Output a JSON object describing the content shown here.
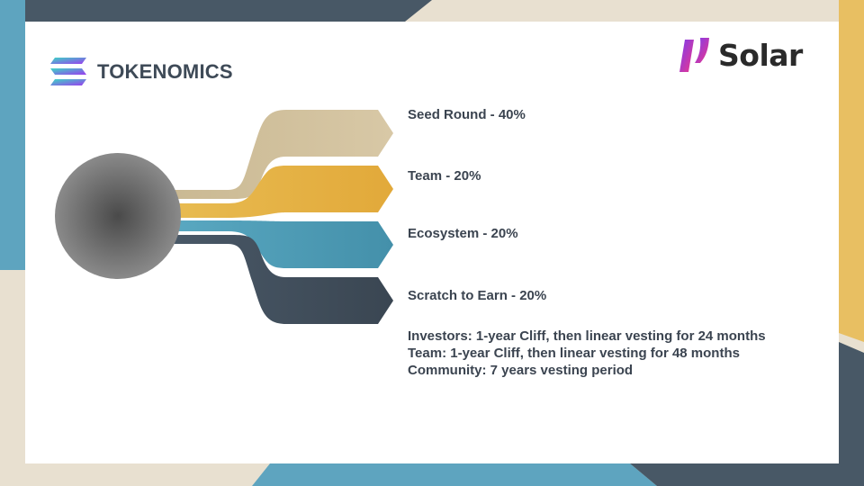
{
  "header": {
    "title": "TOKENOMICS",
    "title_icon": "solana-logo-icon",
    "brand_name": "Solar",
    "brand_icon": "solar-mark-icon"
  },
  "diagram": {
    "hub_icon": "hub-circle",
    "allocations": [
      {
        "label": "Seed Round - 40%",
        "name": "Seed Round",
        "percent": 40,
        "color": "#cdbd98"
      },
      {
        "label": "Team - 20%",
        "name": "Team",
        "percent": 20,
        "color": "#e5b03f"
      },
      {
        "label": "Ecosystem - 20%",
        "name": "Ecosystem",
        "percent": 20,
        "color": "#4b9bb5"
      },
      {
        "label": "Scratch to Earn - 20%",
        "name": "Scratch to Earn",
        "percent": 20,
        "color": "#3f4c5a"
      }
    ]
  },
  "vesting": [
    "Investors: 1-year Cliff, then linear vesting for 24 months",
    "Team: 1-year Cliff, then linear vesting for 48 months",
    "Community: 7 years vesting period"
  ],
  "colors": {
    "background_cream": "#e8e0d0",
    "background_navy": "#485866",
    "background_teal": "#5ea4bf",
    "background_gold": "#e8bf62",
    "text_dark": "#3b4450"
  }
}
